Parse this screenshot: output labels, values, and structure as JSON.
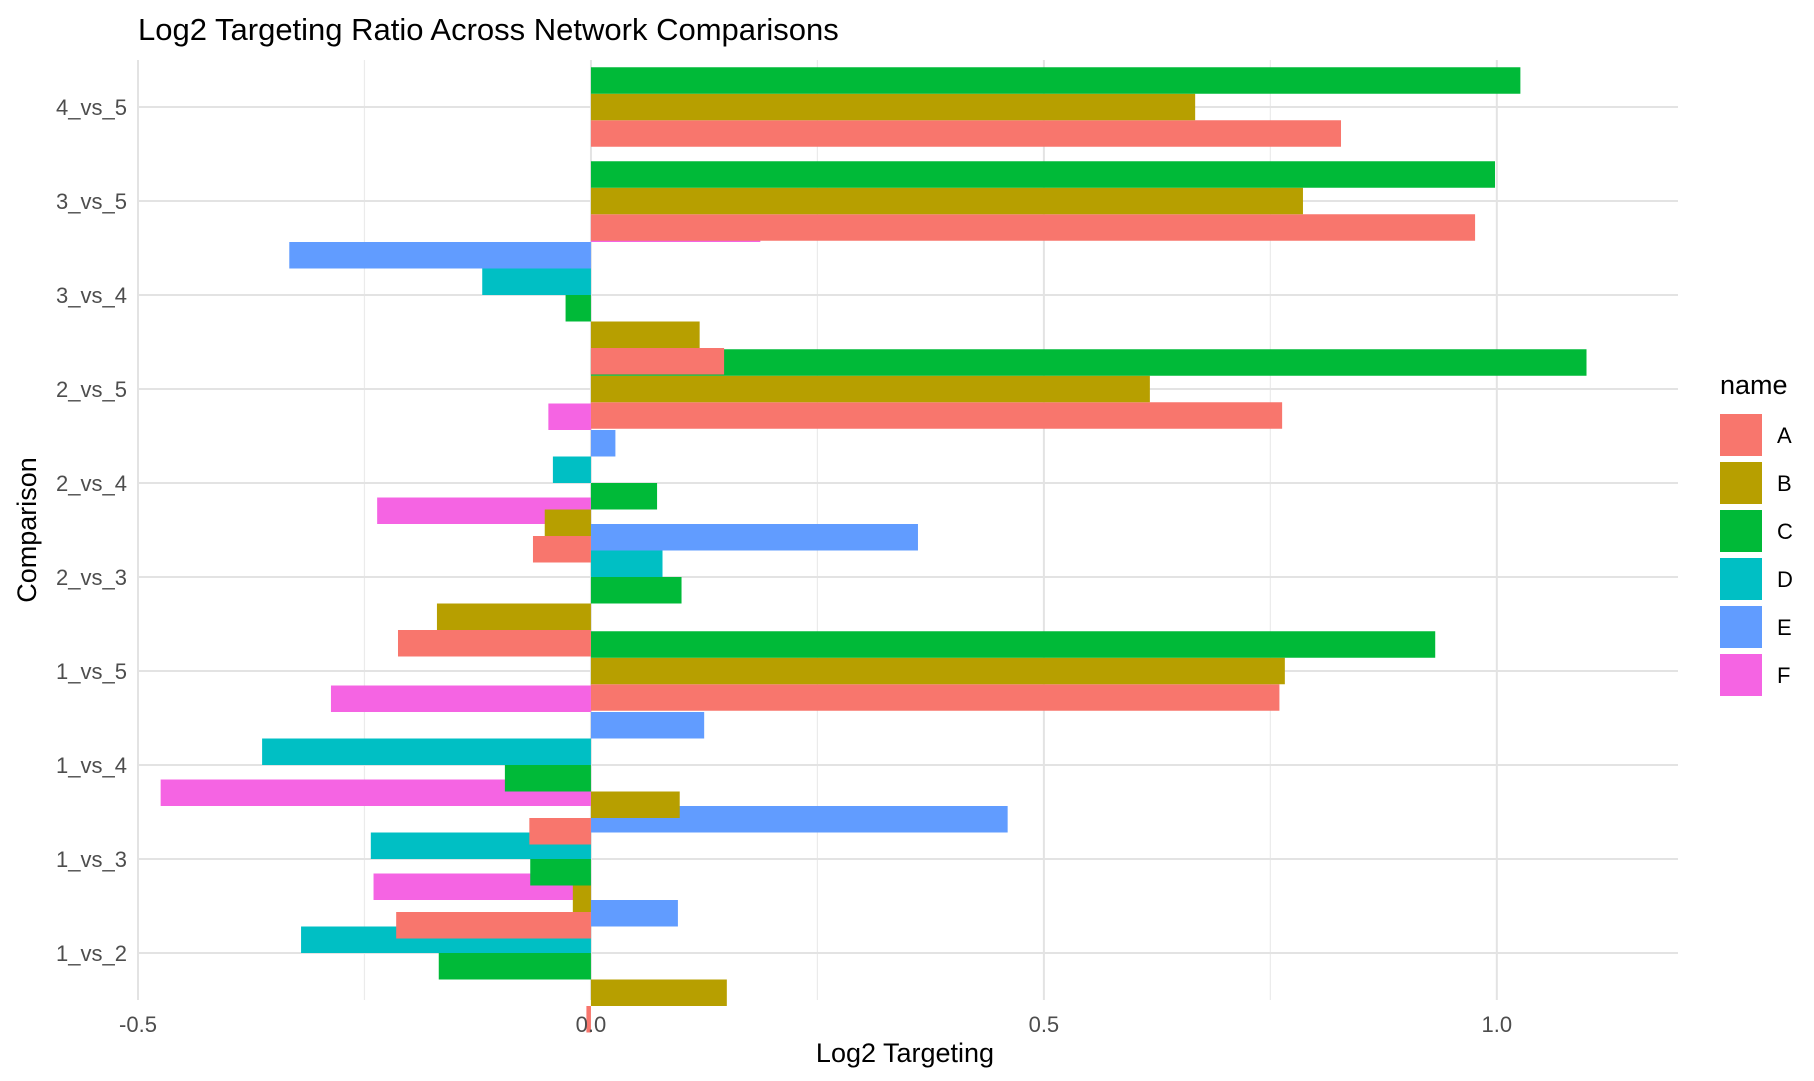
{
  "chart_data": {
    "type": "bar",
    "orientation": "horizontal",
    "title": "Log2 Targeting Ratio Across Network Comparisons",
    "xlabel": "Log2 Targeting",
    "ylabel": "Comparison",
    "xlim": [
      -0.5,
      1.2
    ],
    "x_ticks": [
      -0.5,
      0.0,
      0.5,
      1.0
    ],
    "x_tick_labels": [
      "-0.5",
      "0.0",
      "0.5",
      "1.0"
    ],
    "grid": true,
    "legend": {
      "title": "name",
      "position": "right"
    },
    "categories": [
      "1_vs_2",
      "1_vs_3",
      "1_vs_4",
      "1_vs_5",
      "2_vs_3",
      "2_vs_4",
      "2_vs_5",
      "3_vs_4",
      "3_vs_5",
      "4_vs_5"
    ],
    "series": [
      {
        "name": "A",
        "color": "#F8766D",
        "values": [
          -0.005,
          -0.215,
          -0.068,
          0.76,
          -0.213,
          -0.064,
          0.763,
          0.147,
          0.976,
          0.828
        ]
      },
      {
        "name": "B",
        "color": "#B79F00",
        "values": [
          0.15,
          -0.02,
          0.098,
          0.766,
          -0.17,
          -0.051,
          0.617,
          0.12,
          0.786,
          0.667
        ]
      },
      {
        "name": "C",
        "color": "#00BA38",
        "values": [
          -0.168,
          -0.067,
          -0.095,
          0.932,
          0.1,
          0.073,
          1.099,
          -0.028,
          0.998,
          1.026
        ]
      },
      {
        "name": "D",
        "color": "#00BFC4",
        "values": [
          -0.32,
          -0.243,
          -0.363,
          null,
          0.079,
          -0.042,
          null,
          -0.12,
          null,
          null
        ]
      },
      {
        "name": "E",
        "color": "#619CFF",
        "values": [
          0.096,
          0.46,
          0.125,
          null,
          0.361,
          0.027,
          null,
          -0.333,
          null,
          null
        ]
      },
      {
        "name": "F",
        "color": "#F564E3",
        "values": [
          -0.24,
          -0.475,
          -0.287,
          null,
          -0.236,
          -0.047,
          null,
          0.187,
          null,
          null
        ]
      }
    ]
  }
}
